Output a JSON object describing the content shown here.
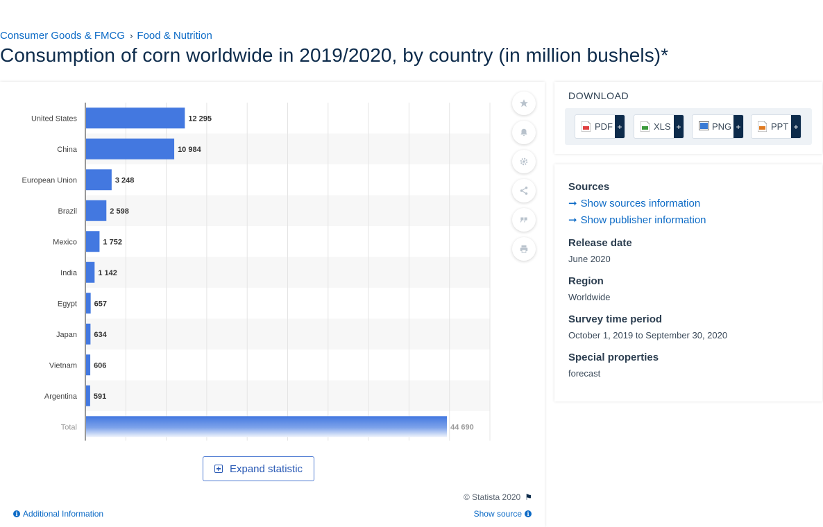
{
  "breadcrumb": {
    "items": [
      "Consumer Goods & FMCG",
      "Food & Nutrition"
    ],
    "separator": "›"
  },
  "page_title": "Consumption of corn worldwide in 2019/2020, by country (in million bushels)*",
  "chart_data": {
    "type": "bar",
    "orientation": "horizontal",
    "categories": [
      "United States",
      "China",
      "European Union",
      "Brazil",
      "Mexico",
      "India",
      "Egypt",
      "Japan",
      "Vietnam",
      "Argentina",
      "Total"
    ],
    "values": [
      12295,
      10984,
      3248,
      2598,
      1752,
      1142,
      657,
      634,
      606,
      591,
      44690
    ],
    "data_labels": [
      "12 295",
      "10 984",
      "3 248",
      "2 598",
      "1 752",
      "1 142",
      "657",
      "634",
      "606",
      "591",
      "44 690"
    ],
    "xlim": [
      0,
      50000
    ],
    "grid": true,
    "bar_color": "#4378e0",
    "title": "",
    "xlabel": "",
    "ylabel": ""
  },
  "toolbar": {
    "icons": [
      "star-icon",
      "bell-icon",
      "gear-icon",
      "share-icon",
      "quote-icon",
      "print-icon"
    ]
  },
  "expand_button": {
    "label": "Expand statistic"
  },
  "footer": {
    "copyright": "© Statista 2020",
    "additional_info": "Additional Information",
    "show_source": "Show source"
  },
  "download": {
    "title": "DOWNLOAD",
    "buttons": [
      {
        "label": "PDF",
        "icon_color": "#e04040"
      },
      {
        "label": "XLS",
        "icon_color": "#3c9a3c"
      },
      {
        "label": "PNG",
        "icon_color": "#3a7bd5"
      },
      {
        "label": "PPT",
        "icon_color": "#e07a20"
      }
    ],
    "plus": "+"
  },
  "sources_panel": {
    "sources_heading": "Sources",
    "show_sources": "Show sources information",
    "show_publisher": "Show publisher information",
    "release_date_heading": "Release date",
    "release_date": "June 2020",
    "region_heading": "Region",
    "region": "Worldwide",
    "survey_heading": "Survey time period",
    "survey_period": "October 1, 2019 to September 30, 2020",
    "special_heading": "Special properties",
    "special": "forecast"
  }
}
